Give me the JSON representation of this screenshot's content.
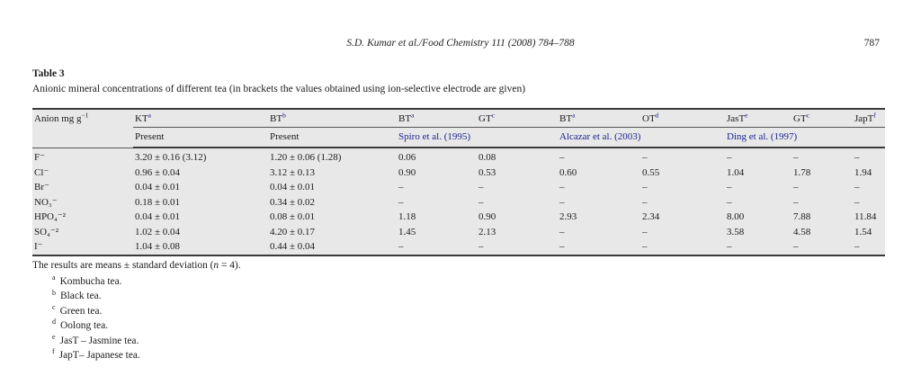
{
  "page_header": {
    "running_head": "S.D. Kumar et al./Food Chemistry 111 (2008) 784–788",
    "page_number": "787"
  },
  "table_label": "Table 3",
  "table_caption": "Anionic mineral concentrations of different tea (in brackets the values obtained using ion-selective electrode are given)",
  "colors": {
    "link": "#1e2490",
    "table_background": "#e8e8e8",
    "rule": "#3a3a3a"
  },
  "table": {
    "unit_header": {
      "text": "Anion mg g",
      "sup": "−1"
    },
    "columns": [
      {
        "label": "KT",
        "sup": "a"
      },
      {
        "label": "BT",
        "sup": "b"
      },
      {
        "label": "BT",
        "sup": "a"
      },
      {
        "label": "GT",
        "sup": "c"
      },
      {
        "label": "BT",
        "sup": "a"
      },
      {
        "label": "OT",
        "sup": "d"
      },
      {
        "label": "JasT",
        "sup": "e"
      },
      {
        "label": "GT",
        "sup": "c"
      },
      {
        "label": "JapT",
        "sup": "f"
      }
    ],
    "source_row": [
      {
        "text": "Present",
        "span": 1,
        "link": false
      },
      {
        "text": "Present",
        "span": 1,
        "link": false
      },
      {
        "text": "Spiro et al. (1995)",
        "span": 2,
        "link": true
      },
      {
        "text": "Alcazar et al. (2003)",
        "span": 2,
        "link": true
      },
      {
        "text": "Ding et al. (1997)",
        "span": 3,
        "link": true
      }
    ],
    "rows": [
      {
        "anion": "F⁻",
        "values": [
          "3.20 ± 0.16 (3.12)",
          "1.20 ± 0.06 (1.28)",
          "0.06",
          "0.08",
          "–",
          "–",
          "–",
          "–",
          "–"
        ]
      },
      {
        "anion": "Cl⁻",
        "values": [
          "0.96 ± 0.04",
          "3.12 ± 0.13",
          "0.90",
          "0.53",
          "0.60",
          "0.55",
          "1.04",
          "1.78",
          "1.94"
        ]
      },
      {
        "anion": "Br⁻",
        "values": [
          "0.04 ± 0.01",
          "0.04 ± 0.01",
          "–",
          "–",
          "–",
          "–",
          "–",
          "–",
          "–"
        ]
      },
      {
        "anion": "NO₃⁻",
        "values": [
          "0.18 ± 0.01",
          "0.34 ± 0.02",
          "–",
          "–",
          "–",
          "–",
          "–",
          "–",
          "–"
        ]
      },
      {
        "anion": "HPO₄⁻²",
        "values": [
          "0.04 ± 0.01",
          "0.08 ± 0.01",
          "1.18",
          "0.90",
          "2.93",
          "2.34",
          "8.00",
          "7.88",
          "11.84"
        ]
      },
      {
        "anion": "SO₄⁻²",
        "values": [
          "1.02 ± 0.04",
          "4.20 ± 0.17",
          "1.45",
          "2.13",
          "–",
          "–",
          "3.58",
          "4.58",
          "1.54"
        ]
      },
      {
        "anion": "I⁻",
        "values": [
          "1.04 ± 0.08",
          "0.44 ± 0.04",
          "–",
          "–",
          "–",
          "–",
          "–",
          "–",
          "–"
        ]
      }
    ]
  },
  "notes": {
    "general_prefix": "The results are means ± standard deviation (",
    "general_italic": "n",
    "general_suffix": " = 4).",
    "footnotes": [
      {
        "marker": "a",
        "text": "Kombucha tea."
      },
      {
        "marker": "b",
        "text": "Black tea."
      },
      {
        "marker": "c",
        "text": "Green tea."
      },
      {
        "marker": "d",
        "text": "Oolong tea."
      },
      {
        "marker": "e",
        "text": "JasT – Jasmine tea."
      },
      {
        "marker": "f",
        "text": "JapT– Japanese tea."
      }
    ]
  }
}
